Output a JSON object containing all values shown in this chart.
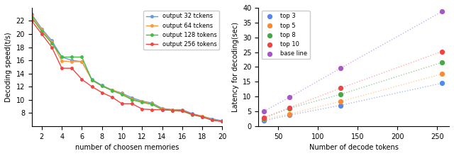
{
  "left": {
    "x": [
      1,
      2,
      3,
      4,
      5,
      6,
      7,
      8,
      9,
      10,
      11,
      12,
      13,
      14,
      15,
      16,
      17,
      18,
      19,
      20
    ],
    "series": {
      "output 32 tckens": {
        "color": "#6699dd",
        "values": [
          23.0,
          20.8,
          19.0,
          16.5,
          16.0,
          15.8,
          13.1,
          12.2,
          11.5,
          11.0,
          10.3,
          9.8,
          9.5,
          8.7,
          8.5,
          8.5,
          7.9,
          7.5,
          7.1,
          6.8
        ]
      },
      "output 64 tckens": {
        "color": "#ff9933",
        "values": [
          22.8,
          20.6,
          18.8,
          15.9,
          15.8,
          15.8,
          13.0,
          12.1,
          11.5,
          10.9,
          10.1,
          9.7,
          9.4,
          8.6,
          8.5,
          8.4,
          7.8,
          7.5,
          7.0,
          6.7
        ]
      },
      "output 128 tokens": {
        "color": "#44bb44",
        "values": [
          22.5,
          20.4,
          18.6,
          16.5,
          16.5,
          16.5,
          13.0,
          12.1,
          11.4,
          10.8,
          10.0,
          9.6,
          9.3,
          8.5,
          8.4,
          8.3,
          7.7,
          7.4,
          6.9,
          6.7
        ]
      },
      "output 256 tokens": {
        "color": "#ee4444",
        "values": [
          22.0,
          20.0,
          18.0,
          14.8,
          14.8,
          13.1,
          12.0,
          11.1,
          10.4,
          9.4,
          9.4,
          8.6,
          8.5,
          8.5,
          8.4,
          8.3,
          7.8,
          7.4,
          6.9,
          6.7
        ]
      }
    },
    "xlabel": "number of choosen memories",
    "ylabel": "Decoding speed(t/s)",
    "xlim": [
      1,
      20
    ],
    "ylim": [
      6,
      24
    ],
    "yticks": [
      8,
      10,
      12,
      14,
      16,
      18,
      20,
      22
    ],
    "xticks": [
      2,
      4,
      6,
      8,
      10,
      12,
      14,
      16,
      18,
      20
    ]
  },
  "right": {
    "x": [
      32,
      64,
      128,
      256
    ],
    "series": {
      "top 3": {
        "color": "#5588ee",
        "line_color": "#aabbee",
        "values": [
          1.8,
          3.7,
          7.0,
          14.5
        ]
      },
      "top 5": {
        "color": "#ff8833",
        "line_color": "#ffcc99",
        "values": [
          2.3,
          4.1,
          8.3,
          17.6
        ]
      },
      "top 8": {
        "color": "#44aa44",
        "line_color": "#99cc99",
        "values": [
          2.7,
          6.0,
          10.7,
          21.5
        ]
      },
      "top 10": {
        "color": "#ee4444",
        "line_color": "#ffaaaa",
        "values": [
          2.9,
          6.2,
          12.8,
          25.2
        ]
      },
      "base line": {
        "color": "#aa55cc",
        "line_color": "#ccaaee",
        "values": [
          5.0,
          9.7,
          19.5,
          38.7
        ]
      }
    },
    "xlabel": "Number of decode tokens",
    "ylabel": "Latency for decoding(sec)",
    "xlim": [
      25,
      265
    ],
    "ylim": [
      0,
      40
    ],
    "yticks": [
      0,
      5,
      10,
      15,
      20,
      25,
      30,
      35,
      40
    ],
    "xticks": [
      50,
      100,
      150,
      200,
      250
    ]
  }
}
